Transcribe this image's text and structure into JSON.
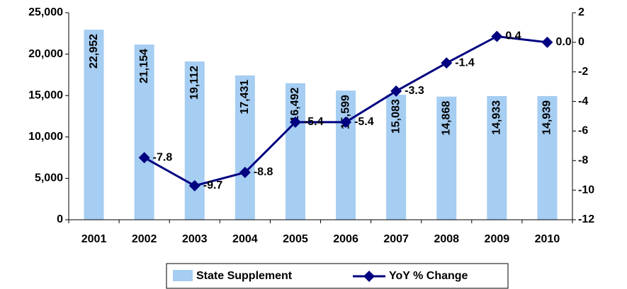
{
  "chart_data": {
    "type": "bar_line",
    "categories": [
      "2001",
      "2002",
      "2003",
      "2004",
      "2005",
      "2006",
      "2007",
      "2008",
      "2009",
      "2010"
    ],
    "series": [
      {
        "name": "State Supplement",
        "type": "bar",
        "color": "#a6cdf2",
        "axis": "y",
        "values": [
          22952,
          21154,
          19112,
          17431,
          16492,
          15599,
          15083,
          14868,
          14933,
          14939
        ],
        "value_labels": [
          "22,952",
          "21,154",
          "19,112",
          "17,431",
          "16,492",
          "15,599",
          "15,083",
          "14,868",
          "14,933",
          "14,939"
        ]
      },
      {
        "name": "YoY % Change",
        "type": "line",
        "color": "#000080",
        "axis": "y2",
        "values": [
          null,
          -7.8,
          -9.7,
          -8.8,
          -5.4,
          -5.4,
          -3.3,
          -1.4,
          0.4,
          0.0
        ],
        "value_labels": [
          null,
          "-7.8",
          "-9.7",
          "-8.8",
          "-5.4",
          "-5.4",
          "-3.3",
          "-1.4",
          "0.4",
          "0.0"
        ]
      }
    ],
    "ylim": [
      0,
      25000
    ],
    "yticks": [
      0,
      {
        "value": 5000,
        "label": "5,000"
      },
      {
        "value": 10000,
        "label": "10,000"
      },
      {
        "value": 15000,
        "label": "15,000"
      },
      {
        "value": 20000,
        "label": "20,000"
      },
      {
        "value": 25000,
        "label": "25,000"
      }
    ],
    "y2lim": [
      -12,
      2
    ],
    "y2ticks": [
      -12,
      -10,
      -8,
      -6,
      -4,
      -2,
      0,
      2
    ],
    "legend": "bottom"
  }
}
